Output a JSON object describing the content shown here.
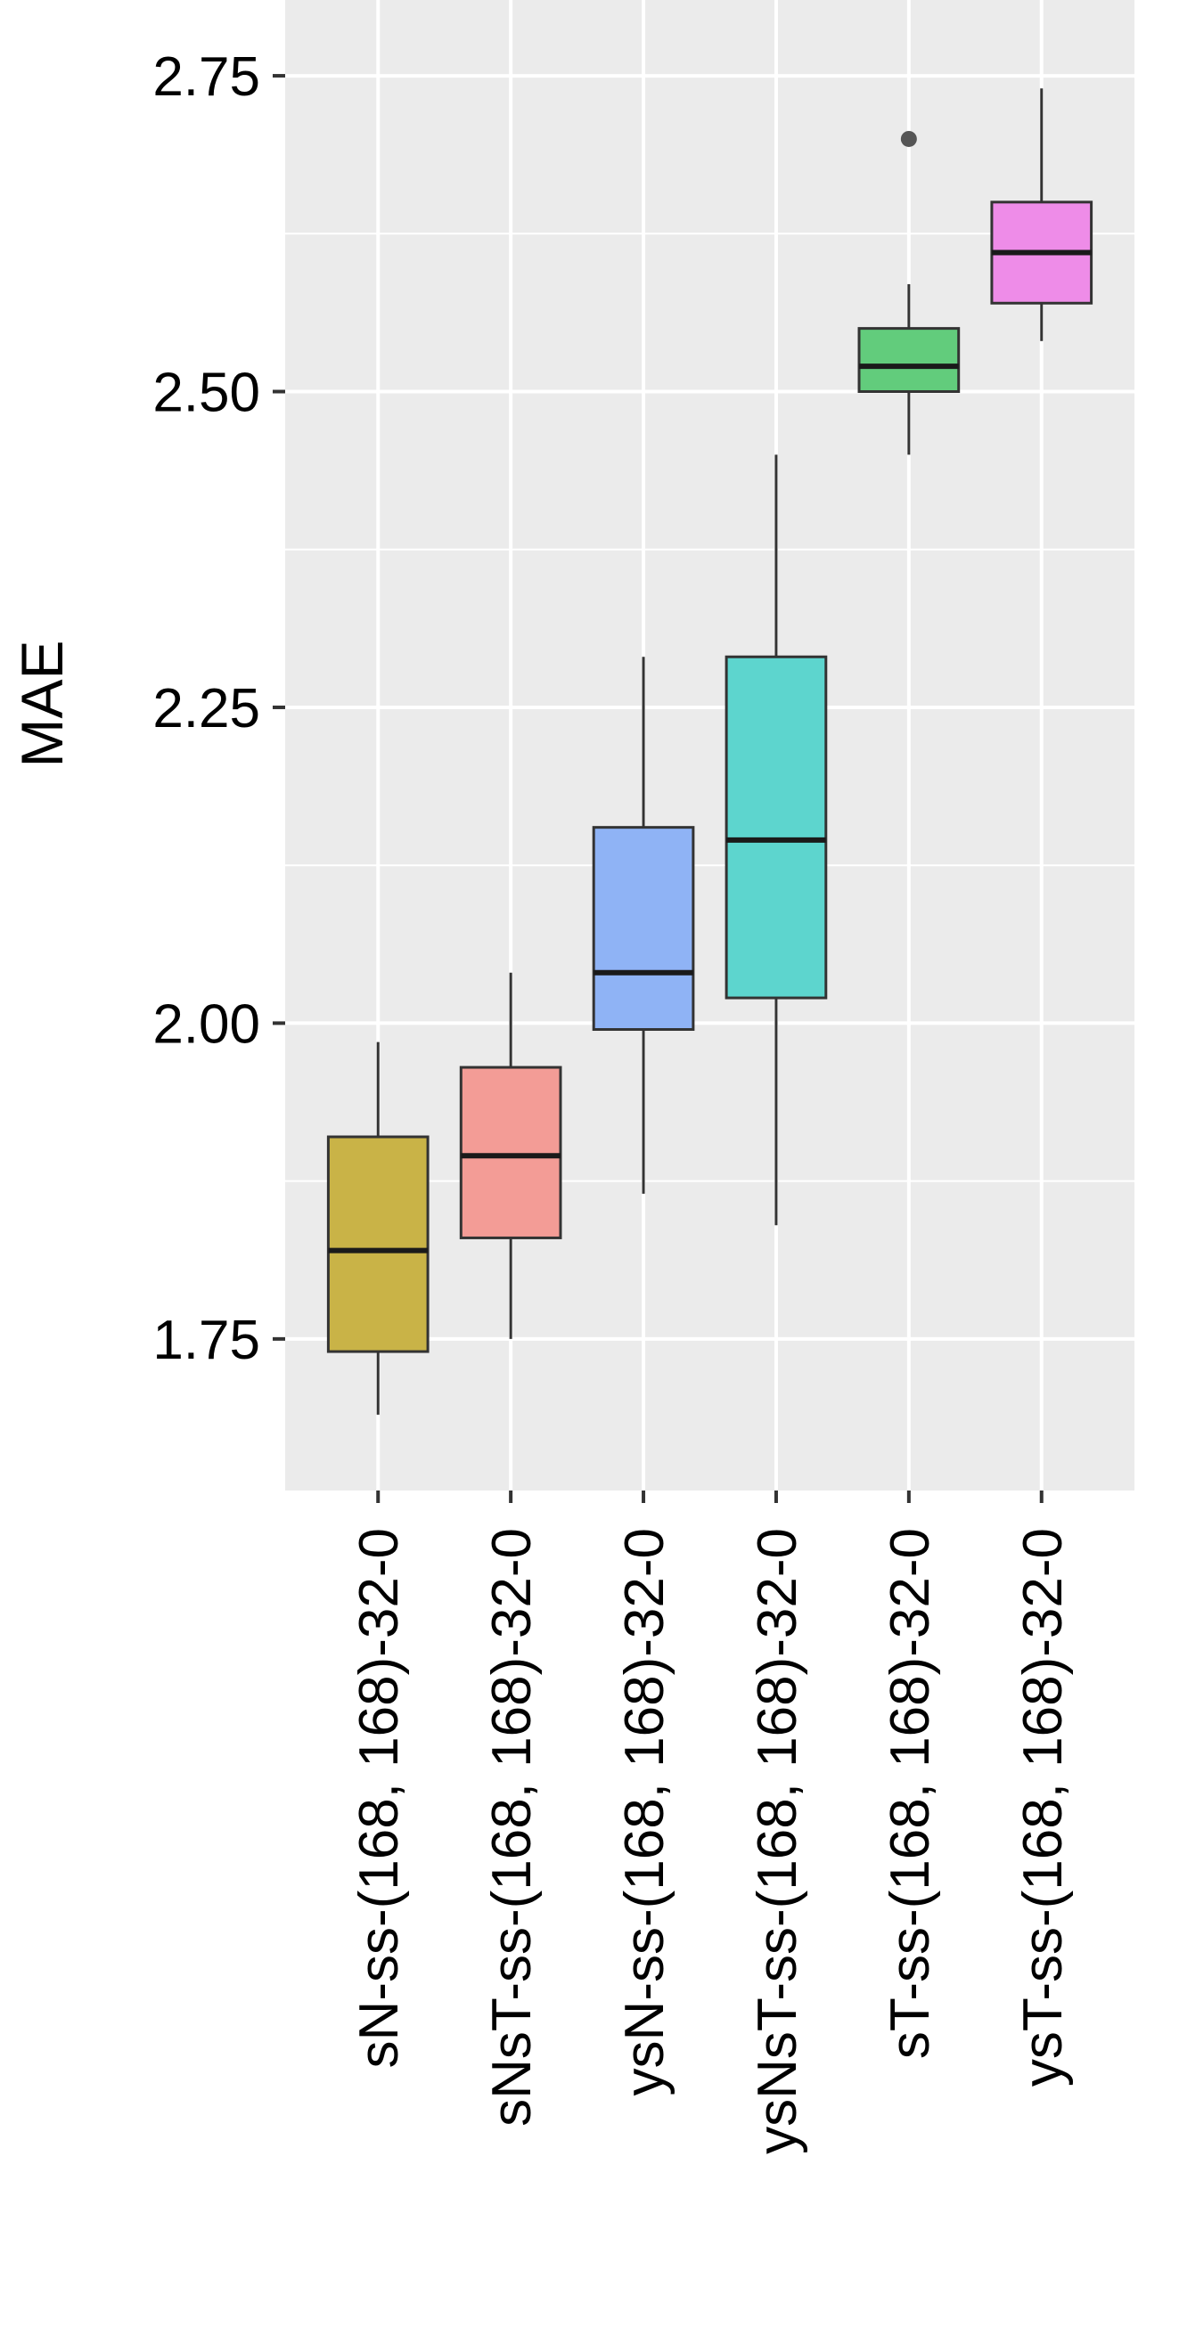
{
  "chart_data": {
    "type": "box",
    "ylabel": "MAE",
    "xlabel": "",
    "ylim": [
      1.63,
      2.81
    ],
    "y_ticks": [
      "1.75",
      "2.00",
      "2.25",
      "2.50",
      "2.75"
    ],
    "grid": true,
    "categories": [
      "sN-ss-(168, 168)-32-0",
      "sNsT-ss-(168, 168)-32-0",
      "ysN-ss-(168, 168)-32-0",
      "ysNsT-ss-(168, 168)-32-0",
      "sT-ss-(168, 168)-32-0",
      "ysT-ss-(168, 168)-32-0"
    ],
    "boxes": [
      {
        "whisker_low": 1.69,
        "q1": 1.74,
        "median": 1.82,
        "q3": 1.91,
        "whisker_high": 1.985,
        "outliers": [],
        "color": "#C9B347"
      },
      {
        "whisker_low": 1.75,
        "q1": 1.83,
        "median": 1.895,
        "q3": 1.965,
        "whisker_high": 2.04,
        "outliers": [],
        "color": "#F39C96"
      },
      {
        "whisker_low": 1.865,
        "q1": 1.995,
        "median": 2.04,
        "q3": 2.155,
        "whisker_high": 2.29,
        "outliers": [],
        "color": "#8FB3F5"
      },
      {
        "whisker_low": 1.84,
        "q1": 2.02,
        "median": 2.145,
        "q3": 2.29,
        "whisker_high": 2.45,
        "outliers": [],
        "color": "#5DD5CE"
      },
      {
        "whisker_low": 2.45,
        "q1": 2.5,
        "median": 2.52,
        "q3": 2.55,
        "whisker_high": 2.585,
        "outliers": [
          2.7
        ],
        "color": "#62CC7C"
      },
      {
        "whisker_low": 2.54,
        "q1": 2.57,
        "median": 2.61,
        "q3": 2.65,
        "whisker_high": 2.74,
        "outliers": [],
        "color": "#EE8CE8"
      }
    ]
  }
}
